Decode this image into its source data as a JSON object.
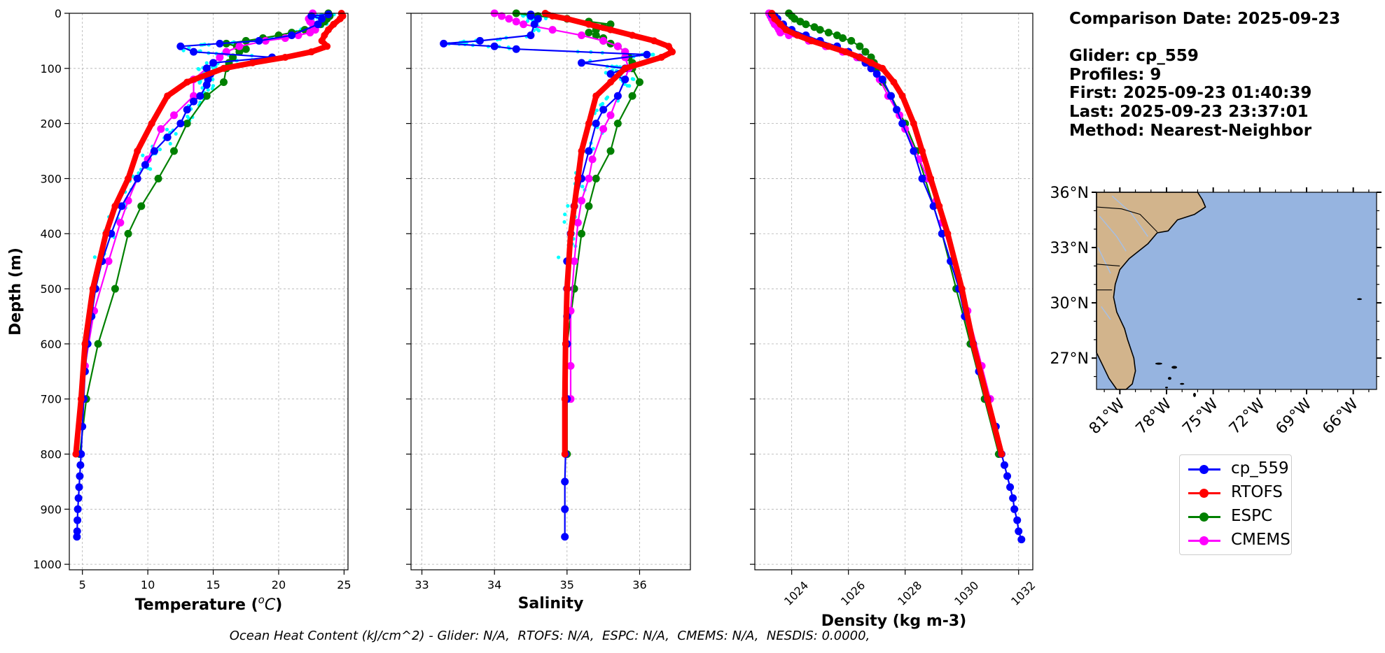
{
  "info": {
    "comparison": "Comparison Date: 2025-09-23",
    "glider": "Glider: cp_559",
    "profiles": "Profiles: 9",
    "first": "First: 2025-09-23 01:40:39",
    "last": "Last: 2025-09-23 23:37:01",
    "method": "Method: Nearest-Neighbor"
  },
  "footer": "Ocean Heat Content (kJ/cm^2) - Glider: N/A,  RTOFS: N/A,  ESPC: N/A,  CMEMS: N/A,  NESDIS: 0.0000,",
  "legend": [
    {
      "label": "cp_559",
      "color": "#0000ff"
    },
    {
      "label": "RTOFS",
      "color": "#ff0000"
    },
    {
      "label": "ESPC",
      "color": "#008000"
    },
    {
      "label": "CMEMS",
      "color": "#ff00ff"
    }
  ],
  "colors": {
    "glider": "#0000ff",
    "rtofs": "#ff0000",
    "espc": "#008000",
    "cmems": "#ff00ff",
    "raw": "#00ffff",
    "land": "#d2b48c",
    "ocean": "#96b4e0"
  },
  "map": {
    "lat_ticks": [
      "36°N",
      "33°N",
      "30°N",
      "27°N"
    ],
    "lat_values": [
      36,
      33,
      30,
      27
    ],
    "lon_ticks": [
      "81°W",
      "78°W",
      "75°W",
      "72°W",
      "69°W",
      "66°W"
    ],
    "lon_values": [
      -81,
      -78,
      -75,
      -72,
      -69,
      -66
    ],
    "extent": {
      "lon": [
        -82.5,
        -64.5
      ],
      "lat": [
        25.3,
        36
      ]
    }
  },
  "chart_data": [
    {
      "type": "line",
      "title": "Temperature",
      "xlabel": "Temperature (°C)",
      "ylabel": "Depth (m)",
      "xlim": [
        4,
        25.3
      ],
      "ylim": [
        1010,
        0
      ],
      "xticks": [
        5,
        10,
        15,
        20,
        25
      ],
      "yticks": [
        0,
        100,
        200,
        300,
        400,
        500,
        600,
        700,
        800,
        900,
        1000
      ],
      "grid": true,
      "series": [
        {
          "name": "cp_559",
          "depth": [
            2,
            5,
            10,
            20,
            40,
            50,
            55,
            60,
            70,
            80,
            90,
            100,
            110,
            120,
            130,
            150,
            160,
            175,
            200,
            225,
            250,
            275,
            300,
            350,
            400,
            450,
            500,
            550,
            600,
            650,
            700,
            750,
            800,
            820,
            840,
            860,
            880,
            900,
            920,
            940,
            950
          ],
          "values": [
            23.8,
            22.5,
            23.3,
            23.0,
            21.0,
            18.5,
            15.5,
            12.5,
            13.5,
            19.5,
            15.0,
            14.5,
            14.8,
            14.6,
            14.5,
            14.0,
            13.5,
            13.0,
            12.5,
            11.5,
            10.5,
            9.8,
            9.2,
            8.0,
            7.2,
            6.5,
            6.0,
            5.7,
            5.4,
            5.2,
            5.1,
            5.0,
            4.9,
            4.85,
            4.8,
            4.75,
            4.7,
            4.65,
            4.62,
            4.6,
            4.58
          ]
        },
        {
          "name": "RTOFS",
          "depth": [
            0,
            5,
            10,
            20,
            30,
            40,
            50,
            60,
            70,
            80,
            90,
            100,
            125,
            150,
            200,
            250,
            300,
            350,
            400,
            500,
            600,
            700,
            800
          ],
          "values": [
            24.8,
            24.9,
            24.7,
            24.2,
            23.8,
            23.5,
            23.3,
            23.7,
            22.5,
            20.5,
            18.0,
            15.8,
            13.0,
            11.5,
            10.3,
            9.2,
            8.5,
            7.5,
            6.8,
            5.8,
            5.2,
            4.9,
            4.5
          ]
        },
        {
          "name": "ESPC",
          "depth": [
            0,
            5,
            10,
            15,
            20,
            25,
            30,
            35,
            40,
            45,
            50,
            55,
            60,
            65,
            70,
            80,
            90,
            100,
            125,
            150,
            200,
            250,
            300,
            350,
            400,
            500,
            600,
            700,
            800
          ],
          "values": [
            23.8,
            23.9,
            23.7,
            23.5,
            23.2,
            22.8,
            22.0,
            21.0,
            20.0,
            18.8,
            17.5,
            16.0,
            16.8,
            17.5,
            17.0,
            16.5,
            16.2,
            16.0,
            15.8,
            14.5,
            13.0,
            12.0,
            10.8,
            9.5,
            8.5,
            7.5,
            6.2,
            5.3,
            4.8
          ]
        },
        {
          "name": "CMEMS",
          "depth": [
            0,
            5,
            10,
            15,
            20,
            25,
            30,
            35,
            40,
            45,
            50,
            60,
            70,
            80,
            90,
            100,
            120,
            150,
            185,
            210,
            265,
            300,
            340,
            380,
            450,
            540,
            640,
            700
          ],
          "values": [
            22.6,
            22.5,
            22.3,
            22.4,
            22.6,
            22.7,
            22.8,
            22.4,
            21.5,
            20.5,
            19.0,
            17.0,
            16.0,
            15.5,
            15.0,
            14.5,
            13.5,
            13.5,
            12.0,
            11.0,
            10.0,
            9.2,
            8.5,
            7.9,
            7.0,
            5.9,
            5.2,
            5.0
          ]
        }
      ]
    },
    {
      "type": "line",
      "title": "Salinity",
      "xlabel": "Salinity",
      "xlim": [
        32.85,
        36.7
      ],
      "ylim": [
        1010,
        0
      ],
      "xticks": [
        33,
        34,
        35,
        36
      ],
      "grid": true,
      "series": [
        {
          "name": "cp_559",
          "depth": [
            2,
            5,
            10,
            20,
            40,
            50,
            55,
            60,
            65,
            75,
            90,
            100,
            110,
            120,
            150,
            175,
            200,
            250,
            300,
            350,
            400,
            450,
            500,
            550,
            600,
            700,
            800,
            850,
            900,
            950
          ],
          "values": [
            34.5,
            34.5,
            34.6,
            34.55,
            34.5,
            33.8,
            33.3,
            34.0,
            34.3,
            36.1,
            35.2,
            35.8,
            35.6,
            35.8,
            35.7,
            35.5,
            35.4,
            35.3,
            35.2,
            35.1,
            35.05,
            35.0,
            35.0,
            35.0,
            35.0,
            35.0,
            34.98,
            34.97,
            34.97,
            34.97
          ]
        },
        {
          "name": "RTOFS",
          "depth": [
            0,
            5,
            10,
            20,
            30,
            40,
            50,
            60,
            70,
            80,
            100,
            125,
            150,
            200,
            250,
            300,
            350,
            400,
            500,
            600,
            700,
            800
          ],
          "values": [
            34.7,
            34.8,
            35.0,
            35.3,
            35.6,
            35.9,
            36.2,
            36.4,
            36.45,
            36.3,
            35.8,
            35.6,
            35.4,
            35.3,
            35.2,
            35.15,
            35.1,
            35.05,
            35.0,
            34.98,
            34.97,
            34.97
          ]
        },
        {
          "name": "ESPC",
          "depth": [
            0,
            5,
            10,
            15,
            20,
            25,
            30,
            35,
            40,
            45,
            50,
            55,
            60,
            70,
            80,
            90,
            100,
            125,
            150,
            200,
            250,
            300,
            350,
            400,
            500,
            600,
            700,
            800
          ],
          "values": [
            34.3,
            34.6,
            35.0,
            35.3,
            35.6,
            35.5,
            35.4,
            35.3,
            35.4,
            35.5,
            35.5,
            35.6,
            35.7,
            35.8,
            35.85,
            35.9,
            35.9,
            36.0,
            35.9,
            35.7,
            35.6,
            35.4,
            35.3,
            35.2,
            35.1,
            35.0,
            35.0,
            35.0
          ]
        },
        {
          "name": "CMEMS",
          "depth": [
            0,
            5,
            10,
            15,
            20,
            30,
            40,
            50,
            60,
            70,
            80,
            100,
            120,
            150,
            185,
            210,
            265,
            300,
            340,
            380,
            450,
            540,
            640,
            700
          ],
          "values": [
            34.0,
            34.1,
            34.2,
            34.3,
            34.4,
            34.8,
            35.2,
            35.5,
            35.7,
            35.8,
            35.8,
            35.85,
            35.8,
            35.7,
            35.6,
            35.5,
            35.35,
            35.3,
            35.2,
            35.15,
            35.1,
            35.05,
            35.05,
            35.05
          ]
        }
      ]
    },
    {
      "type": "line",
      "title": "Density",
      "xlabel": "Density (kg m-3)",
      "xlim": [
        1022.7,
        1032.5
      ],
      "ylim": [
        1010,
        0
      ],
      "xticks": [
        1024,
        1026,
        1028,
        1030,
        1032
      ],
      "grid": true,
      "series": [
        {
          "name": "cp_559",
          "depth": [
            2,
            5,
            10,
            20,
            30,
            40,
            50,
            60,
            70,
            80,
            90,
            100,
            110,
            120,
            150,
            175,
            200,
            250,
            300,
            350,
            400,
            450,
            500,
            550,
            600,
            650,
            700,
            750,
            800,
            820,
            840,
            860,
            880,
            900,
            920,
            940,
            955
          ],
          "values": [
            1023.3,
            1023.4,
            1023.5,
            1023.7,
            1024.0,
            1024.5,
            1025.0,
            1025.6,
            1026.0,
            1026.4,
            1026.6,
            1026.8,
            1027.0,
            1027.2,
            1027.5,
            1027.7,
            1027.9,
            1028.3,
            1028.6,
            1029.0,
            1029.3,
            1029.6,
            1029.9,
            1030.1,
            1030.4,
            1030.6,
            1030.9,
            1031.2,
            1031.4,
            1031.5,
            1031.6,
            1031.7,
            1031.8,
            1031.85,
            1031.95,
            1032.0,
            1032.1
          ]
        },
        {
          "name": "RTOFS",
          "depth": [
            0,
            10,
            20,
            30,
            40,
            50,
            60,
            70,
            80,
            90,
            100,
            125,
            150,
            200,
            250,
            300,
            350,
            400,
            500,
            600,
            700,
            800
          ],
          "values": [
            1023.3,
            1023.4,
            1023.6,
            1023.8,
            1024.2,
            1024.7,
            1025.3,
            1025.9,
            1026.4,
            1026.8,
            1027.2,
            1027.6,
            1027.9,
            1028.3,
            1028.6,
            1028.9,
            1029.2,
            1029.5,
            1030.0,
            1030.4,
            1030.9,
            1031.4
          ]
        },
        {
          "name": "ESPC",
          "depth": [
            0,
            5,
            10,
            15,
            20,
            25,
            30,
            35,
            40,
            45,
            50,
            60,
            70,
            80,
            90,
            100,
            125,
            150,
            200,
            250,
            300,
            350,
            400,
            500,
            600,
            700,
            800
          ],
          "values": [
            1023.9,
            1024.0,
            1024.1,
            1024.3,
            1024.5,
            1024.8,
            1025.0,
            1025.3,
            1025.6,
            1025.8,
            1026.1,
            1026.4,
            1026.6,
            1026.8,
            1026.9,
            1027.0,
            1027.2,
            1027.5,
            1028.0,
            1028.4,
            1028.7,
            1029.0,
            1029.3,
            1029.8,
            1030.3,
            1030.8,
            1031.3
          ]
        },
        {
          "name": "CMEMS",
          "depth": [
            0,
            5,
            10,
            15,
            20,
            25,
            30,
            35,
            40,
            50,
            60,
            70,
            80,
            100,
            120,
            150,
            185,
            210,
            265,
            300,
            340,
            380,
            450,
            540,
            640,
            700
          ],
          "values": [
            1023.2,
            1023.25,
            1023.3,
            1023.35,
            1023.4,
            1023.5,
            1023.55,
            1023.6,
            1023.9,
            1024.6,
            1025.2,
            1025.8,
            1026.3,
            1026.8,
            1027.1,
            1027.4,
            1027.8,
            1028.0,
            1028.5,
            1028.8,
            1029.1,
            1029.3,
            1029.7,
            1030.2,
            1030.7,
            1031.0
          ]
        }
      ]
    }
  ]
}
